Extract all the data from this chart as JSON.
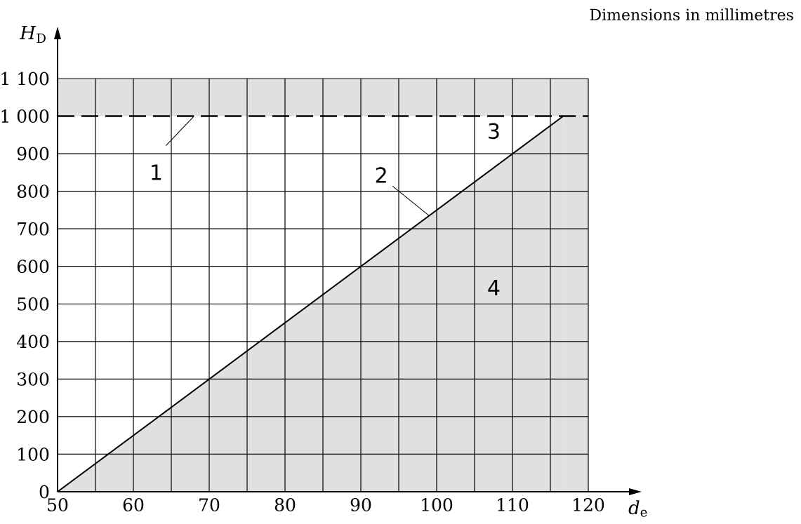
{
  "chart_data": {
    "type": "area",
    "xlabel": "*d*$_{e}$",
    "ylabel": "*H*$_{D}$",
    "annotations": [
      "Dimensions in millimetres",
      {
        "text": "1",
        "x": 68,
        "y": 1000
      },
      {
        "text": "2",
        "x": 99,
        "y": 735
      },
      "3",
      "4"
    ],
    "series": [
      {
        "color": "#e0e0e0",
        "x": [
          50,
          116.7
        ],
        "values": [
          0,
          1000
        ]
      }
    ],
    "xlim": [
      50,
      120
    ],
    "ylim": [
      0,
      1100
    ],
    "xticks": [
      50,
      {
        "value": 55,
        "label": null
      },
      60,
      {
        "value": 65,
        "label": null
      },
      70,
      {
        "value": 75,
        "label": null
      },
      80,
      {
        "value": 85,
        "label": null
      },
      90,
      {
        "value": 95,
        "label": null
      },
      100,
      {
        "value": 105,
        "label": null
      },
      110,
      {
        "value": 115,
        "label": null
      },
      120
    ],
    "yticks": [
      0,
      100,
      200,
      300,
      400,
      500,
      600,
      700,
      800,
      900,
      {
        "value": 1000,
        "label": "1 000"
      },
      {
        "value": 1100,
        "label": "1 100"
      }
    ],
    "grid": true,
    "ref_lines": [
      {
        "axis": "y",
        "value": 1000,
        "color": "#000000",
        "line_style": "dashed"
      }
    ],
    "bands": [
      {
        "axis": "y",
        "from": 1000,
        "to": 1100,
        "color": "#e0e0e0"
      },
      {
        "axis": "x",
        "from": 116.7,
        "to": 120,
        "color": "#e0e0e0"
      }
    ]
  }
}
